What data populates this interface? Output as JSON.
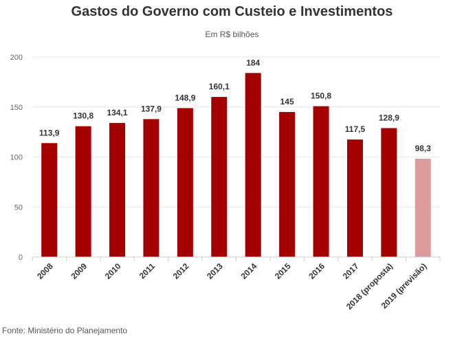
{
  "chart_data": {
    "type": "bar",
    "title": "Gastos do Governo com Custeio e Investimentos",
    "subtitle": "Em R$ bilhões",
    "categories": [
      "2008",
      "2009",
      "2010",
      "2011",
      "2012",
      "2013",
      "2014",
      "2015",
      "2016",
      "2017",
      "2018 (proposta)",
      "2019 (previsão)"
    ],
    "values": [
      113.9,
      130.8,
      134.1,
      137.9,
      148.9,
      160.1,
      184,
      145,
      150.8,
      117.5,
      128.9,
      98.3
    ],
    "data_labels": [
      "113,9",
      "130,8",
      "134,1",
      "137,9",
      "148,9",
      "160,1",
      "184",
      "145",
      "150,8",
      "117,5",
      "128,9",
      "98,3"
    ],
    "bar_colors": [
      "#a50000",
      "#a50000",
      "#a50000",
      "#a50000",
      "#a50000",
      "#a50000",
      "#a50000",
      "#a50000",
      "#a50000",
      "#a50000",
      "#a50000",
      "#dc9c9c"
    ],
    "ylim": [
      0,
      200
    ],
    "yticks": [
      0,
      50,
      100,
      150,
      200
    ],
    "xlabel": "",
    "ylabel": "",
    "grid": true,
    "legend": "none"
  },
  "footer": {
    "source": "Fonte: Ministério do Planejamento"
  }
}
